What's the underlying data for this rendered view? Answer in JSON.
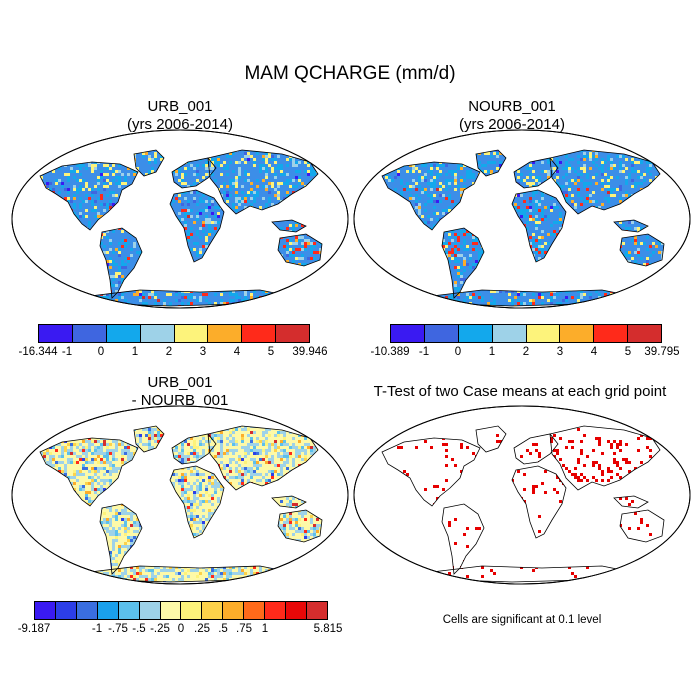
{
  "figure_title": "MAM QCHARGE (mm/d)",
  "panels": [
    {
      "title_line1": "URB_001",
      "title_line2": "(yrs 2006-2014)"
    },
    {
      "title_line1": "NOURB_001",
      "title_line2": "(yrs 2006-2014)"
    },
    {
      "title_line1": "URB_001",
      "title_line2": "- NOURB_001"
    },
    {
      "title_line1": "T-Test of two Case means at each grid point",
      "title_line2": ""
    }
  ],
  "colorbars": [
    {
      "colors": [
        "#3a1af2",
        "#3f66e0",
        "#13a8ec",
        "#9ed2e8",
        "#fdf37b",
        "#fcad2a",
        "#ff2a1a",
        "#d42d2d"
      ],
      "labels": [
        "-16.344",
        "-1",
        "0",
        "1",
        "2",
        "3",
        "4",
        "5",
        "39.946"
      ]
    },
    {
      "colors": [
        "#3a1af2",
        "#3f66e0",
        "#13a8ec",
        "#9ed2e8",
        "#fdf37b",
        "#fcad2a",
        "#ff2a1a",
        "#d42d2d"
      ],
      "labels": [
        "-10.389",
        "-1",
        "0",
        "1",
        "2",
        "3",
        "4",
        "5",
        "39.795"
      ]
    },
    {
      "colors": [
        "#3a1af2",
        "#2c3ee8",
        "#3a6ee0",
        "#1aa0ec",
        "#5cc0ec",
        "#9ed2e8",
        "#fdf9a8",
        "#fdf37b",
        "#fdd24a",
        "#fcad2a",
        "#ff6a1a",
        "#ff2a1a",
        "#e80808",
        "#d42d2d"
      ],
      "labels": [
        "-9.187",
        "",
        "",
        "-1",
        "-.75",
        "-.5",
        "-.25",
        "0",
        ".25",
        ".5",
        ".75",
        "1",
        "",
        "",
        "5.815"
      ]
    }
  ],
  "significance_note": "Cells are significant at 0.1 level",
  "colors": {
    "ocean": "#ffffff",
    "land_base": "#3c8ee8",
    "significant": "#e60000",
    "coast": "#000000"
  }
}
